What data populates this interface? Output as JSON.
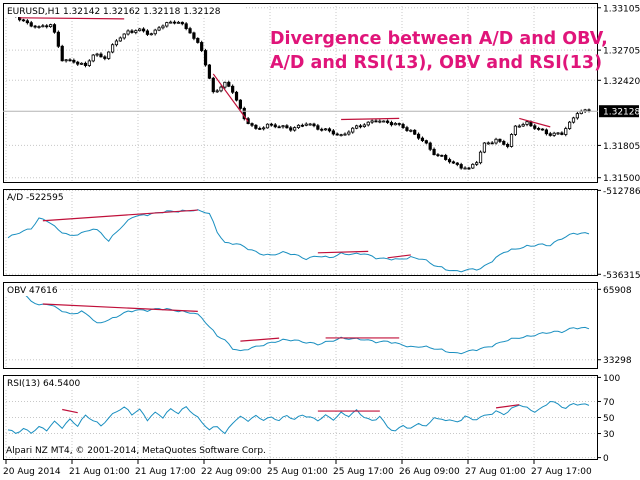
{
  "chart_data": {
    "type": "line",
    "annotation": [
      "Divergence between A/D and OBV,",
      "A/D and RSI(13), OBV and RSI(13)"
    ],
    "footer": "Alpari NZ MT4, © 2001-2014, MetaQuotes Software Corp.",
    "x_labels": [
      "20 Aug 2014",
      "21 Aug 01:00",
      "21 Aug 17:00",
      "22 Aug 09:00",
      "25 Aug 01:00",
      "25 Aug 17:00",
      "26 Aug 09:00",
      "27 Aug 01:00",
      "27 Aug 17:00"
    ],
    "colors": {
      "bull_candle": "#ffffff",
      "bear_candle": "#000000",
      "indicator_line": "#1a8fc0",
      "divergence_line": "#c0103a",
      "annotation_text": "#e0157a",
      "grid": "#c8c8c8"
    },
    "panels": [
      {
        "name": "price",
        "label": "EURUSD,H1  1.32142 1.32162 1.32118 1.32128",
        "kind": "candles",
        "ylim": [
          1.3145,
          1.3315
        ],
        "ticks": [
          "1.33105",
          "1.32705",
          "1.32420",
          "1.31805",
          "1.31500"
        ],
        "tick_values": [
          1.33105,
          1.32705,
          1.3242,
          1.31805,
          1.315
        ],
        "current": "1.32128",
        "current_value": 1.32128,
        "anchors": [
          [
            0,
            1.3308
          ],
          [
            3,
            1.33
          ],
          [
            5,
            1.3296
          ],
          [
            8,
            1.3292
          ],
          [
            11,
            1.3294
          ],
          [
            12,
            1.3286
          ],
          [
            14,
            1.3262
          ],
          [
            17,
            1.326
          ],
          [
            20,
            1.3255
          ],
          [
            22,
            1.3266
          ],
          [
            25,
            1.3264
          ],
          [
            28,
            1.328
          ],
          [
            31,
            1.3287
          ],
          [
            34,
            1.329
          ],
          [
            37,
            1.3286
          ],
          [
            40,
            1.3294
          ],
          [
            44,
            1.3298
          ],
          [
            47,
            1.3288
          ],
          [
            50,
            1.327
          ],
          [
            53,
            1.323
          ],
          [
            56,
            1.324
          ],
          [
            58,
            1.3232
          ],
          [
            61,
            1.3205
          ],
          [
            64,
            1.3196
          ],
          [
            67,
            1.32
          ],
          [
            70,
            1.3198
          ],
          [
            73,
            1.3196
          ],
          [
            77,
            1.3202
          ],
          [
            80,
            1.3196
          ],
          [
            83,
            1.3194
          ],
          [
            86,
            1.319
          ],
          [
            89,
            1.3196
          ],
          [
            92,
            1.32
          ],
          [
            95,
            1.3205
          ],
          [
            98,
            1.3202
          ],
          [
            101,
            1.3199
          ],
          [
            104,
            1.3194
          ],
          [
            107,
            1.3186
          ],
          [
            110,
            1.3172
          ],
          [
            113,
            1.3168
          ],
          [
            116,
            1.3162
          ],
          [
            119,
            1.3158
          ],
          [
            121,
            1.3165
          ],
          [
            123,
            1.3182
          ],
          [
            126,
            1.3186
          ],
          [
            129,
            1.318
          ],
          [
            131,
            1.3198
          ],
          [
            134,
            1.3202
          ],
          [
            137,
            1.3196
          ],
          [
            140,
            1.319
          ],
          [
            143,
            1.3192
          ],
          [
            145,
            1.3202
          ],
          [
            147,
            1.3212
          ],
          [
            150,
            1.3213
          ]
        ],
        "divergences": [
          [
            [
              3,
              1.3301
            ],
            [
              30,
              1.33
            ]
          ],
          [
            [
              53,
              1.3248
            ],
            [
              62,
              1.3203
            ]
          ],
          [
            [
              86,
              1.3205
            ],
            [
              101,
              1.3206
            ]
          ],
          [
            [
              132,
              1.3206
            ],
            [
              140,
              1.3198
            ]
          ]
        ]
      },
      {
        "name": "ad",
        "label": "A/D -522595",
        "kind": "line",
        "ylim": [
          -536800,
          -512400
        ],
        "ticks": [
          "-512786",
          "-536315"
        ],
        "tick_values": [
          -512786,
          -536315
        ],
        "anchors": [
          [
            0,
            -526200
          ],
          [
            3,
            -524600
          ],
          [
            6,
            -523300
          ],
          [
            8,
            -520700
          ],
          [
            10,
            -521300
          ],
          [
            13,
            -523900
          ],
          [
            16,
            -525400
          ],
          [
            19,
            -524900
          ],
          [
            22,
            -523600
          ],
          [
            24,
            -524600
          ],
          [
            26,
            -526900
          ],
          [
            28,
            -524300
          ],
          [
            30,
            -522600
          ],
          [
            32,
            -520300
          ],
          [
            35,
            -519600
          ],
          [
            38,
            -519200
          ],
          [
            41,
            -518800
          ],
          [
            44,
            -518600
          ],
          [
            47,
            -518300
          ],
          [
            50,
            -518700
          ],
          [
            52,
            -519400
          ],
          [
            54,
            -524300
          ],
          [
            56,
            -527400
          ],
          [
            59,
            -527800
          ],
          [
            62,
            -529200
          ],
          [
            65,
            -530400
          ],
          [
            68,
            -531000
          ],
          [
            71,
            -530300
          ],
          [
            74,
            -530700
          ],
          [
            77,
            -531900
          ],
          [
            80,
            -531300
          ],
          [
            83,
            -531700
          ],
          [
            86,
            -530400
          ],
          [
            89,
            -530800
          ],
          [
            92,
            -530600
          ],
          [
            95,
            -531600
          ],
          [
            98,
            -532000
          ],
          [
            101,
            -532300
          ],
          [
            104,
            -531500
          ],
          [
            107,
            -531900
          ],
          [
            110,
            -533900
          ],
          [
            113,
            -534900
          ],
          [
            116,
            -535400
          ],
          [
            119,
            -535100
          ],
          [
            122,
            -534900
          ],
          [
            125,
            -532400
          ],
          [
            128,
            -530100
          ],
          [
            131,
            -529400
          ],
          [
            134,
            -528400
          ],
          [
            137,
            -527900
          ],
          [
            140,
            -528300
          ],
          [
            143,
            -526200
          ],
          [
            146,
            -524700
          ],
          [
            150,
            -525000
          ]
        ],
        "divergences": [
          [
            [
              9,
              -521300
            ],
            [
              49,
              -518300
            ]
          ],
          [
            [
              80,
              -530300
            ],
            [
              93,
              -529900
            ]
          ],
          [
            [
              98,
              -531700
            ],
            [
              104,
              -530900
            ]
          ]
        ]
      },
      {
        "name": "obv",
        "label": "OBV 47616",
        "kind": "line",
        "ylim": [
          29000,
          69300
        ],
        "ticks": [
          "65908",
          "33298"
        ],
        "tick_values": [
          65908,
          33298
        ],
        "anchors": [
          [
            0,
            65200
          ],
          [
            3,
            65700
          ],
          [
            5,
            62200
          ],
          [
            8,
            58400
          ],
          [
            10,
            59100
          ],
          [
            12,
            57600
          ],
          [
            14,
            56100
          ],
          [
            16,
            54600
          ],
          [
            19,
            55400
          ],
          [
            21,
            53500
          ],
          [
            23,
            49900
          ],
          [
            25,
            51400
          ],
          [
            27,
            52500
          ],
          [
            30,
            54800
          ],
          [
            33,
            56300
          ],
          [
            36,
            56400
          ],
          [
            39,
            56900
          ],
          [
            42,
            56300
          ],
          [
            45,
            55800
          ],
          [
            48,
            55000
          ],
          [
            50,
            52700
          ],
          [
            52,
            48300
          ],
          [
            54,
            44700
          ],
          [
            56,
            42500
          ],
          [
            58,
            38600
          ],
          [
            60,
            37000
          ],
          [
            62,
            38200
          ],
          [
            65,
            40000
          ],
          [
            68,
            41200
          ],
          [
            71,
            42200
          ],
          [
            74,
            42500
          ],
          [
            77,
            41500
          ],
          [
            80,
            40200
          ],
          [
            83,
            41800
          ],
          [
            86,
            43500
          ],
          [
            89,
            42800
          ],
          [
            92,
            42500
          ],
          [
            95,
            41800
          ],
          [
            98,
            41800
          ],
          [
            101,
            40300
          ],
          [
            104,
            39300
          ],
          [
            107,
            39600
          ],
          [
            110,
            38300
          ],
          [
            113,
            37300
          ],
          [
            116,
            36400
          ],
          [
            119,
            37100
          ],
          [
            122,
            38200
          ],
          [
            125,
            40000
          ],
          [
            128,
            41900
          ],
          [
            131,
            43000
          ],
          [
            134,
            44100
          ],
          [
            137,
            45300
          ],
          [
            140,
            45800
          ],
          [
            143,
            46300
          ],
          [
            146,
            48300
          ],
          [
            150,
            47600
          ]
        ],
        "divergences": [
          [
            [
              9,
              59100
            ],
            [
              49,
              55700
            ]
          ],
          [
            [
              60,
              41900
            ],
            [
              70,
              43300
            ]
          ],
          [
            [
              82,
              43400
            ],
            [
              101,
              43400
            ]
          ]
        ]
      },
      {
        "name": "rsi",
        "label": "RSI(13) 64.5400",
        "kind": "line",
        "ylim": [
          -3,
          103
        ],
        "ticks": [
          "100",
          "70",
          "50",
          "30",
          "0"
        ],
        "tick_values": [
          100,
          70,
          50,
          30,
          0
        ],
        "anchors": [
          [
            0,
            34
          ],
          [
            2,
            30
          ],
          [
            4,
            36
          ],
          [
            6,
            32
          ],
          [
            8,
            38
          ],
          [
            10,
            34
          ],
          [
            12,
            44
          ],
          [
            14,
            38
          ],
          [
            16,
            48
          ],
          [
            18,
            40
          ],
          [
            20,
            52
          ],
          [
            22,
            46
          ],
          [
            24,
            40
          ],
          [
            26,
            50
          ],
          [
            28,
            58
          ],
          [
            30,
            62
          ],
          [
            32,
            54
          ],
          [
            34,
            60
          ],
          [
            36,
            48
          ],
          [
            38,
            56
          ],
          [
            40,
            50
          ],
          [
            42,
            60
          ],
          [
            44,
            56
          ],
          [
            46,
            64
          ],
          [
            48,
            54
          ],
          [
            50,
            44
          ],
          [
            52,
            34
          ],
          [
            54,
            40
          ],
          [
            56,
            30
          ],
          [
            58,
            44
          ],
          [
            60,
            50
          ],
          [
            62,
            46
          ],
          [
            64,
            52
          ],
          [
            66,
            48
          ],
          [
            68,
            50
          ],
          [
            70,
            46
          ],
          [
            72,
            52
          ],
          [
            74,
            48
          ],
          [
            76,
            54
          ],
          [
            78,
            50
          ],
          [
            80,
            46
          ],
          [
            82,
            52
          ],
          [
            84,
            48
          ],
          [
            86,
            56
          ],
          [
            88,
            52
          ],
          [
            90,
            58
          ],
          [
            92,
            50
          ],
          [
            94,
            46
          ],
          [
            96,
            52
          ],
          [
            98,
            38
          ],
          [
            100,
            32
          ],
          [
            102,
            40
          ],
          [
            104,
            36
          ],
          [
            106,
            44
          ],
          [
            108,
            38
          ],
          [
            110,
            50
          ],
          [
            112,
            46
          ],
          [
            114,
            48
          ],
          [
            116,
            44
          ],
          [
            118,
            52
          ],
          [
            120,
            46
          ],
          [
            122,
            50
          ],
          [
            124,
            54
          ],
          [
            126,
            58
          ],
          [
            128,
            54
          ],
          [
            130,
            60
          ],
          [
            132,
            66
          ],
          [
            134,
            62
          ],
          [
            136,
            58
          ],
          [
            138,
            62
          ],
          [
            140,
            70
          ],
          [
            142,
            66
          ],
          [
            144,
            62
          ],
          [
            146,
            68
          ],
          [
            148,
            66
          ],
          [
            150,
            65
          ]
        ],
        "divergences": [
          [
            [
              14,
              60
            ],
            [
              18,
              56
            ]
          ],
          [
            [
              80,
              58
            ],
            [
              96,
              58
            ]
          ],
          [
            [
              126,
              62
            ],
            [
              132,
              66
            ]
          ]
        ]
      }
    ]
  }
}
